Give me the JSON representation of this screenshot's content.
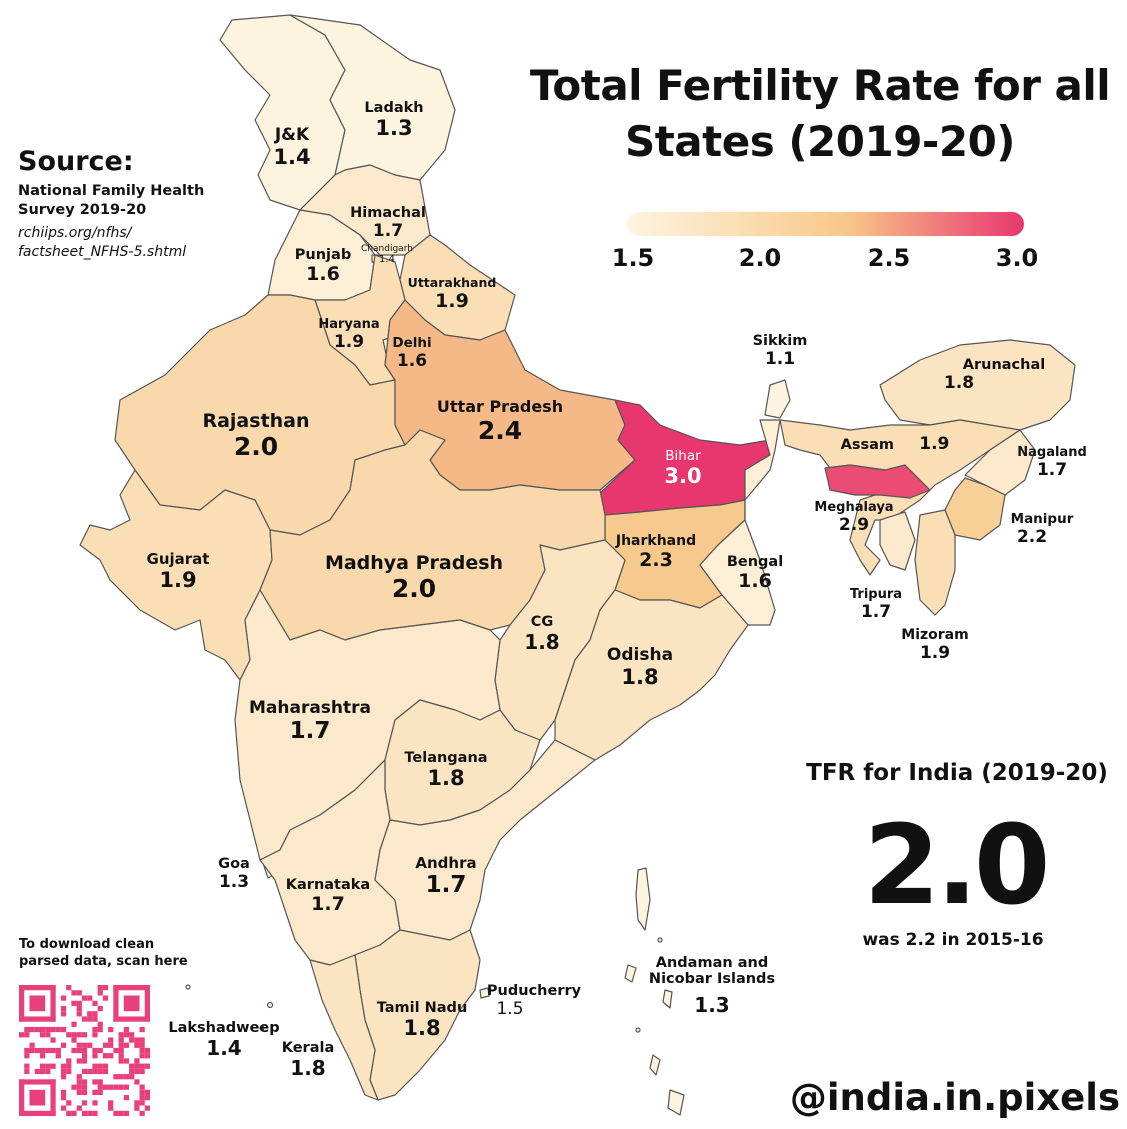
{
  "title": {
    "line1": "Total Fertility Rate for all",
    "line2": "States (2019-20)"
  },
  "source": {
    "heading": "Source:",
    "name_line1": "National Family Health",
    "name_line2": "Survey 2019-20",
    "url_line1": "rchiips.org/nfhs/",
    "url_line2": "factsheet_NFHS-5.shtml"
  },
  "legend": {
    "ticks": [
      "1.5",
      "2.0",
      "2.5",
      "3.0"
    ],
    "color_low": "#fdf4e0",
    "color_mid": "#f7c88a",
    "color_high": "#e8366f"
  },
  "india": {
    "title": "TFR for India (2019-20)",
    "value": "2.0",
    "previous": "was 2.2 in 2015-16"
  },
  "qr": {
    "line1": "To download clean",
    "line2": "parsed data, scan here",
    "color": "#e8407a"
  },
  "handle": "@india.in.pixels",
  "states": [
    {
      "key": "ladakh",
      "name": "Ladakh",
      "value": "1.3"
    },
    {
      "key": "jk",
      "name": "J&K",
      "value": "1.4"
    },
    {
      "key": "himachal",
      "name": "Himachal",
      "value": "1.7"
    },
    {
      "key": "chandigarh",
      "name": "Chandigarh",
      "value": "1.4"
    },
    {
      "key": "punjab",
      "name": "Punjab",
      "value": "1.6"
    },
    {
      "key": "uttarakhand",
      "name": "Uttarakhand",
      "value": "1.9"
    },
    {
      "key": "haryana",
      "name": "Haryana",
      "value": "1.9"
    },
    {
      "key": "delhi",
      "name": "Delhi",
      "value": "1.6"
    },
    {
      "key": "rajasthan",
      "name": "Rajasthan",
      "value": "2.0"
    },
    {
      "key": "up",
      "name": "Uttar Pradesh",
      "value": "2.4"
    },
    {
      "key": "bihar",
      "name": "Bihar",
      "value": "3.0"
    },
    {
      "key": "sikkim",
      "name": "Sikkim",
      "value": "1.1"
    },
    {
      "key": "arunachal",
      "name": "Arunachal",
      "value": "1.8"
    },
    {
      "key": "assam",
      "name": "Assam",
      "value": "1.9"
    },
    {
      "key": "nagaland",
      "name": "Nagaland",
      "value": "1.7"
    },
    {
      "key": "meghalaya",
      "name": "Meghalaya",
      "value": "2.9"
    },
    {
      "key": "manipur",
      "name": "Manipur",
      "value": "2.2"
    },
    {
      "key": "tripura",
      "name": "Tripura",
      "value": "1.7"
    },
    {
      "key": "mizoram",
      "name": "Mizoram",
      "value": "1.9"
    },
    {
      "key": "gujarat",
      "name": "Gujarat",
      "value": "1.9"
    },
    {
      "key": "mp",
      "name": "Madhya Pradesh",
      "value": "2.0"
    },
    {
      "key": "jharkhand",
      "name": "Jharkhand",
      "value": "2.3"
    },
    {
      "key": "bengal",
      "name": "Bengal",
      "value": "1.6"
    },
    {
      "key": "cg",
      "name": "CG",
      "value": "1.8"
    },
    {
      "key": "odisha",
      "name": "Odisha",
      "value": "1.8"
    },
    {
      "key": "maharashtra",
      "name": "Maharashtra",
      "value": "1.7"
    },
    {
      "key": "telangana",
      "name": "Telangana",
      "value": "1.8"
    },
    {
      "key": "goa",
      "name": "Goa",
      "value": "1.3"
    },
    {
      "key": "karnataka",
      "name": "Karnataka",
      "value": "1.7"
    },
    {
      "key": "andhra",
      "name": "Andhra",
      "value": "1.7"
    },
    {
      "key": "andaman",
      "name": "Andaman and Nicobar Islands",
      "name_line1": "Andaman and",
      "name_line2": "Nicobar Islands",
      "value": "1.3"
    },
    {
      "key": "puducherry",
      "name": "Puducherry",
      "value": "1.5"
    },
    {
      "key": "tamilnadu",
      "name": "Tamil Nadu",
      "value": "1.8"
    },
    {
      "key": "lakshadweep",
      "name": "Lakshadweep",
      "value": "1.4"
    },
    {
      "key": "kerala",
      "name": "Kerala",
      "value": "1.8"
    }
  ]
}
